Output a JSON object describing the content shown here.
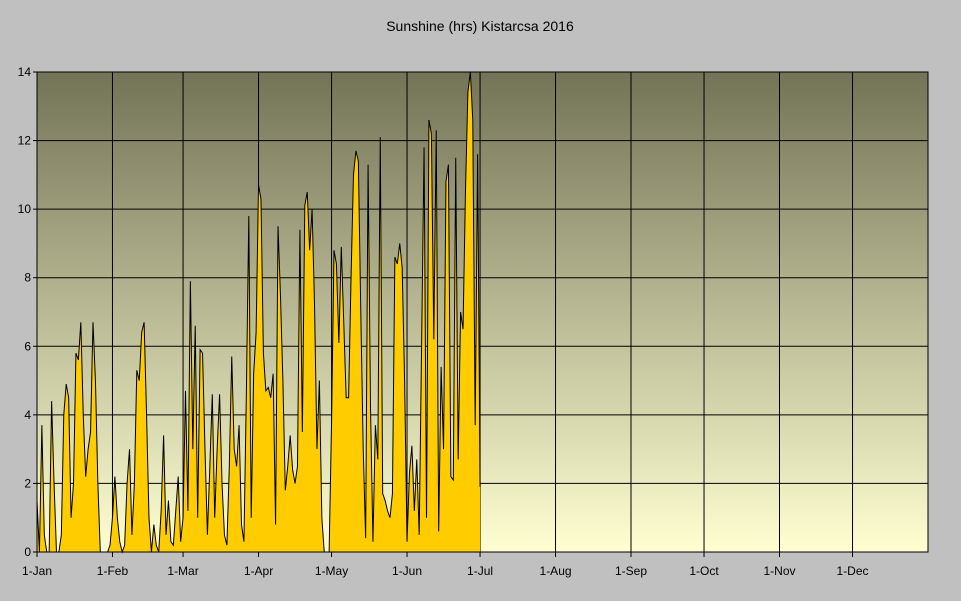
{
  "chart_data": {
    "type": "area",
    "title": "Sunshine (hrs) Kistarcsa 2016",
    "xlabel": "",
    "ylabel": "",
    "ylim": [
      0,
      14
    ],
    "y_ticks": [
      "0",
      "2",
      "4",
      "6",
      "8",
      "10",
      "12",
      "14"
    ],
    "x_ticks": [
      "1-Jan",
      "1-Feb",
      "1-Mar",
      "1-Apr",
      "1-May",
      "1-Jun",
      "1-Jul",
      "1-Aug",
      "1-Sep",
      "1-Oct",
      "1-Nov",
      "1-Dec"
    ],
    "month_days": [
      31,
      29,
      31,
      30,
      31,
      30,
      31,
      31,
      30,
      31,
      30,
      31
    ],
    "grid": true,
    "colors": {
      "fill": "#ffcc00",
      "line": "#000000",
      "plot_top": "#737357",
      "plot_bottom": "#ffffd2",
      "background": "#c0c0c0"
    },
    "series": [
      {
        "name": "Sunshine (hrs)",
        "x_start": "1-Jan",
        "values": [
          1.5,
          0,
          3.7,
          0.5,
          0,
          0,
          4.4,
          2,
          0,
          0,
          0.5,
          4,
          4.9,
          4.5,
          1,
          2,
          5.8,
          5.6,
          6.7,
          4,
          2.2,
          3,
          3.5,
          6.7,
          5,
          2,
          0,
          0,
          0,
          0,
          0.2,
          1,
          2.2,
          1,
          0.3,
          0,
          0.2,
          2,
          3,
          0.5,
          2,
          5.3,
          5,
          6.4,
          6.7,
          4,
          1,
          0,
          0.8,
          0.2,
          0,
          1.2,
          3.4,
          0.5,
          1.5,
          0.3,
          0.2,
          1.2,
          2.2,
          0.3,
          1,
          4.7,
          1.2,
          7.9,
          3,
          6.6,
          1,
          5.9,
          5.8,
          3,
          0.5,
          2.5,
          4.6,
          1,
          3,
          4.6,
          2,
          0.5,
          0.2,
          2.5,
          5.7,
          3,
          2.5,
          3.7,
          0.8,
          0.3,
          4.6,
          9.8,
          1,
          5.2,
          6.4,
          10.7,
          10.3,
          5.8,
          4.7,
          4.8,
          4.5,
          5.2,
          0.8,
          9.5,
          7.5,
          5,
          1.8,
          2.5,
          3.4,
          2.4,
          2,
          2.5,
          9.4,
          3.5,
          10.1,
          10.5,
          8.8,
          10,
          7.2,
          3,
          5,
          1,
          0,
          0,
          0,
          3.8,
          8.8,
          8.4,
          6.1,
          8.9,
          6.7,
          4.5,
          4.5,
          8,
          11,
          11.7,
          11.4,
          7,
          3,
          0.4,
          11.3,
          4.2,
          0.3,
          3.7,
          2.7,
          12.1,
          1.7,
          1.5,
          1.2,
          1,
          1.7,
          8.6,
          8.4,
          9,
          8.3,
          5,
          0.3,
          2.3,
          3.1,
          1.2,
          2.7,
          0.5,
          6.1,
          11.8,
          1,
          12.6,
          12.2,
          6.2,
          12.3,
          0.6,
          5.4,
          3,
          10.8,
          11.3,
          2.2,
          2.1,
          11.5,
          2.7,
          7,
          6.5,
          10.5,
          13.4,
          14,
          12.6,
          3.7,
          11.6,
          1.9
        ]
      }
    ]
  }
}
